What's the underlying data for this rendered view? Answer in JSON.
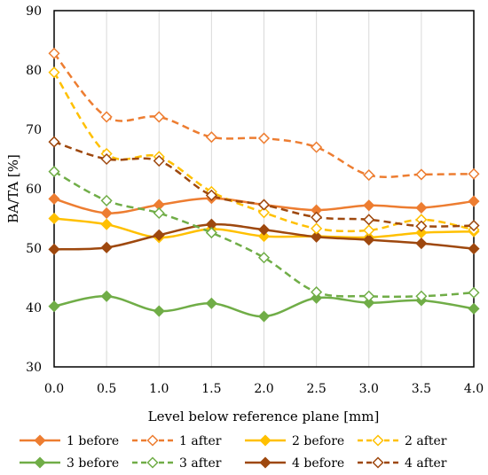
{
  "chart_data": {
    "type": "line",
    "xlabel": "Level below reference plane [mm]",
    "ylabel": "BA/TA [%]",
    "xlim": [
      0.0,
      4.0
    ],
    "ylim": [
      30,
      90
    ],
    "x_ticks": [
      "0.0",
      "0.5",
      "1.0",
      "1.5",
      "2.0",
      "2.5",
      "3.0",
      "3.5",
      "4.0"
    ],
    "y_ticks": [
      "30",
      "40",
      "50",
      "60",
      "70",
      "80",
      "90"
    ],
    "grid": "vertical",
    "legend_position": "bottom",
    "x": [
      0.0,
      0.5,
      1.0,
      1.5,
      2.0,
      2.5,
      3.0,
      3.5,
      4.0
    ],
    "series": [
      {
        "name": "1 before",
        "color": "#ED7D31",
        "dashed": false,
        "filled": true,
        "values": [
          58.3,
          55.9,
          57.3,
          58.4,
          57.3,
          56.4,
          57.2,
          56.8,
          57.9
        ]
      },
      {
        "name": "1 after",
        "color": "#ED7D31",
        "dashed": true,
        "filled": false,
        "values": [
          82.8,
          72.1,
          72.1,
          68.7,
          68.5,
          67.0,
          62.3,
          62.4,
          62.5
        ]
      },
      {
        "name": "2 before",
        "color": "#FFC000",
        "dashed": false,
        "filled": true,
        "values": [
          55.0,
          54.0,
          51.8,
          53.2,
          52.0,
          52.0,
          51.8,
          52.6,
          52.8
        ]
      },
      {
        "name": "2 after",
        "color": "#FFC000",
        "dashed": true,
        "filled": false,
        "values": [
          79.6,
          65.9,
          65.4,
          59.5,
          56.0,
          53.3,
          53.0,
          54.8,
          53.1
        ]
      },
      {
        "name": "3 before",
        "color": "#70AD47",
        "dashed": false,
        "filled": true,
        "values": [
          40.2,
          41.9,
          39.4,
          40.7,
          38.5,
          41.6,
          40.8,
          41.2,
          39.8
        ]
      },
      {
        "name": "3 after",
        "color": "#70AD47",
        "dashed": true,
        "filled": false,
        "values": [
          62.9,
          58.0,
          55.9,
          52.6,
          48.4,
          42.6,
          41.9,
          41.9,
          42.5
        ]
      },
      {
        "name": "4 before",
        "color": "#9E480E",
        "dashed": false,
        "filled": true,
        "values": [
          49.8,
          50.1,
          52.2,
          54.0,
          53.1,
          51.9,
          51.4,
          50.8,
          49.9
        ]
      },
      {
        "name": "4 after",
        "color": "#9E480E",
        "dashed": true,
        "filled": false,
        "values": [
          67.9,
          65.0,
          64.7,
          58.9,
          57.3,
          55.2,
          54.8,
          53.7,
          53.8
        ]
      }
    ]
  }
}
